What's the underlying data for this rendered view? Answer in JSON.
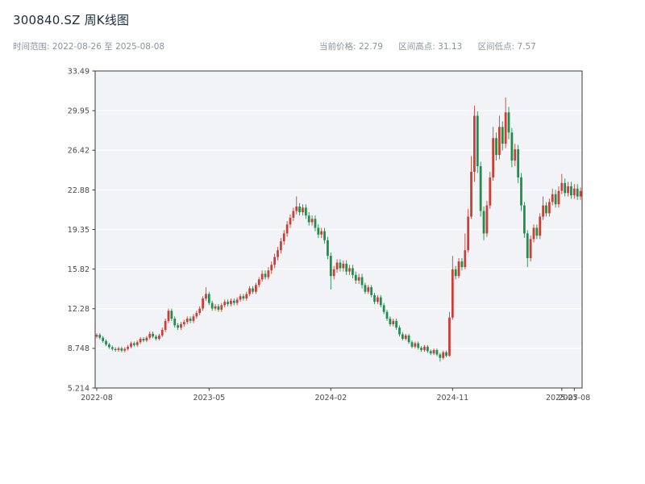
{
  "header": {
    "title": "300840.SZ 周K线图",
    "date_range": "时间范围: 2022-08-26 至 2025-08-08",
    "stats": [
      "当前价格: 22.79",
      "区间高点: 31.13",
      "区间低点: 7.57"
    ]
  },
  "chart_data": {
    "type": "candlestick",
    "symbol": "300840.SZ",
    "freq": "weekly",
    "start_date": "2022-08-26",
    "end_date": "2025-08-08",
    "current_price": 22.79,
    "range_high": 31.13,
    "range_low": 7.57,
    "ylim": [
      5.214,
      33.49
    ],
    "y_ticks": [
      33.49,
      29.95,
      26.42,
      22.88,
      19.35,
      15.82,
      12.28,
      8.748,
      5.214
    ],
    "y_tick_labels": [
      "33.49",
      "29.95",
      "26.42",
      "22.88",
      "19.35",
      "15.82",
      "12.28",
      "8.748",
      "5.214"
    ],
    "x_ticks": [
      {
        "index": 0,
        "label": "2022-08"
      },
      {
        "index": 36,
        "label": "2023-05"
      },
      {
        "index": 75,
        "label": "2024-02"
      },
      {
        "index": 114,
        "label": "2024-11"
      },
      {
        "index": 149,
        "label": "2025-07"
      },
      {
        "index": 153,
        "label": "2025-08"
      }
    ],
    "colors": {
      "up": "#cc3f35",
      "down": "#1f8f4e",
      "plot_bg": "#f2f3f7",
      "grid": "#ffffff",
      "spine": "#3a3a3a",
      "tick_text": "#4a4a4a"
    },
    "candles": [
      [
        9.8,
        10.1,
        9.65,
        9.95
      ],
      [
        9.95,
        10.1,
        9.55,
        9.7
      ],
      [
        9.7,
        9.85,
        9.25,
        9.4
      ],
      [
        9.4,
        9.55,
        8.95,
        9.1
      ],
      [
        9.1,
        9.25,
        8.7,
        8.85
      ],
      [
        8.85,
        9.0,
        8.55,
        8.7
      ],
      [
        8.7,
        8.85,
        8.45,
        8.6
      ],
      [
        8.6,
        8.9,
        8.45,
        8.75
      ],
      [
        8.75,
        8.9,
        8.4,
        8.55
      ],
      [
        8.55,
        8.85,
        8.4,
        8.7
      ],
      [
        8.7,
        9.05,
        8.55,
        8.9
      ],
      [
        8.9,
        9.35,
        8.75,
        9.2
      ],
      [
        9.2,
        9.35,
        8.9,
        9.05
      ],
      [
        9.05,
        9.45,
        8.9,
        9.3
      ],
      [
        9.3,
        9.75,
        9.15,
        9.6
      ],
      [
        9.6,
        9.75,
        9.3,
        9.45
      ],
      [
        9.45,
        9.85,
        9.3,
        9.7
      ],
      [
        9.7,
        10.25,
        9.55,
        10.05
      ],
      [
        10.05,
        10.25,
        9.65,
        9.8
      ],
      [
        9.8,
        9.95,
        9.45,
        9.6
      ],
      [
        9.6,
        10.05,
        9.45,
        9.9
      ],
      [
        9.9,
        10.6,
        9.75,
        10.4
      ],
      [
        10.4,
        11.4,
        10.2,
        11.2
      ],
      [
        11.2,
        12.3,
        11.0,
        12.1
      ],
      [
        12.1,
        12.3,
        11.2,
        11.4
      ],
      [
        11.4,
        11.6,
        10.6,
        10.8
      ],
      [
        10.8,
        11.0,
        10.4,
        10.6
      ],
      [
        10.6,
        11.1,
        10.4,
        10.9
      ],
      [
        10.9,
        11.3,
        10.7,
        11.1
      ],
      [
        11.1,
        11.6,
        10.9,
        11.4
      ],
      [
        11.4,
        11.6,
        11.0,
        11.2
      ],
      [
        11.2,
        11.8,
        11.0,
        11.6
      ],
      [
        11.6,
        12.1,
        11.4,
        11.9
      ],
      [
        11.9,
        12.5,
        11.7,
        12.3
      ],
      [
        12.3,
        13.4,
        12.1,
        13.2
      ],
      [
        13.2,
        14.2,
        13.0,
        13.6
      ],
      [
        13.6,
        13.8,
        12.6,
        12.8
      ],
      [
        12.8,
        13.0,
        12.1,
        12.3
      ],
      [
        12.3,
        12.7,
        12.1,
        12.5
      ],
      [
        12.5,
        12.7,
        12.0,
        12.2
      ],
      [
        12.2,
        12.8,
        12.0,
        12.6
      ],
      [
        12.6,
        13.1,
        12.4,
        12.9
      ],
      [
        12.9,
        13.1,
        12.5,
        12.7
      ],
      [
        12.7,
        13.2,
        12.5,
        13.0
      ],
      [
        13.0,
        13.2,
        12.6,
        12.8
      ],
      [
        12.8,
        13.3,
        12.6,
        13.1
      ],
      [
        13.1,
        13.6,
        12.9,
        13.4
      ],
      [
        13.4,
        13.6,
        13.0,
        13.2
      ],
      [
        13.2,
        13.8,
        13.0,
        13.6
      ],
      [
        13.6,
        14.3,
        13.4,
        14.1
      ],
      [
        14.1,
        14.3,
        13.6,
        13.8
      ],
      [
        13.8,
        14.6,
        13.6,
        14.4
      ],
      [
        14.4,
        15.1,
        14.2,
        14.9
      ],
      [
        14.9,
        15.7,
        14.7,
        15.4
      ],
      [
        15.4,
        15.7,
        14.9,
        15.1
      ],
      [
        15.1,
        16.0,
        14.9,
        15.7
      ],
      [
        15.7,
        16.5,
        15.4,
        16.2
      ],
      [
        16.2,
        17.2,
        15.9,
        16.9
      ],
      [
        16.9,
        17.8,
        16.6,
        17.5
      ],
      [
        17.5,
        18.6,
        17.2,
        18.3
      ],
      [
        18.3,
        19.3,
        18.0,
        19.0
      ],
      [
        19.0,
        20.1,
        18.7,
        19.8
      ],
      [
        19.8,
        20.7,
        19.5,
        20.4
      ],
      [
        20.4,
        21.3,
        20.1,
        21.0
      ],
      [
        21.0,
        22.3,
        20.7,
        21.4
      ],
      [
        21.4,
        21.7,
        20.6,
        20.9
      ],
      [
        20.9,
        21.6,
        20.6,
        21.3
      ],
      [
        21.3,
        21.6,
        20.3,
        20.6
      ],
      [
        20.6,
        20.9,
        19.7,
        20.0
      ],
      [
        20.0,
        20.6,
        19.7,
        20.3
      ],
      [
        20.3,
        20.6,
        19.2,
        19.5
      ],
      [
        19.5,
        19.8,
        18.6,
        18.9
      ],
      [
        18.9,
        19.5,
        18.6,
        19.2
      ],
      [
        19.2,
        19.5,
        18.1,
        18.4
      ],
      [
        18.4,
        18.7,
        16.7,
        17.0
      ],
      [
        17.0,
        17.3,
        14.0,
        15.2
      ],
      [
        15.2,
        16.1,
        14.9,
        15.8
      ],
      [
        15.8,
        16.7,
        15.5,
        16.4
      ],
      [
        16.4,
        16.7,
        15.6,
        15.9
      ],
      [
        15.9,
        16.6,
        15.6,
        16.3
      ],
      [
        16.3,
        16.6,
        15.3,
        15.6
      ],
      [
        15.6,
        16.2,
        15.3,
        15.9
      ],
      [
        15.9,
        16.2,
        15.0,
        15.3
      ],
      [
        15.3,
        15.6,
        14.5,
        14.8
      ],
      [
        14.8,
        15.4,
        14.5,
        15.1
      ],
      [
        15.1,
        15.4,
        14.1,
        14.4
      ],
      [
        14.4,
        14.6,
        13.6,
        13.8
      ],
      [
        13.8,
        14.4,
        13.6,
        14.2
      ],
      [
        14.2,
        14.4,
        13.3,
        13.5
      ],
      [
        13.5,
        13.7,
        12.7,
        12.9
      ],
      [
        12.9,
        13.5,
        12.7,
        13.3
      ],
      [
        13.3,
        13.5,
        12.4,
        12.6
      ],
      [
        12.6,
        12.8,
        11.8,
        12.0
      ],
      [
        12.0,
        12.2,
        11.2,
        11.4
      ],
      [
        11.4,
        11.6,
        10.7,
        10.9
      ],
      [
        10.9,
        11.4,
        10.7,
        11.2
      ],
      [
        11.2,
        11.4,
        10.4,
        10.6
      ],
      [
        10.6,
        10.8,
        9.8,
        10.0
      ],
      [
        10.0,
        10.2,
        9.45,
        9.6
      ],
      [
        9.6,
        10.05,
        9.45,
        9.9
      ],
      [
        9.9,
        10.05,
        9.15,
        9.3
      ],
      [
        9.3,
        9.45,
        8.75,
        8.9
      ],
      [
        8.9,
        9.35,
        8.75,
        9.2
      ],
      [
        9.2,
        9.35,
        8.65,
        8.8
      ],
      [
        8.8,
        8.95,
        8.45,
        8.6
      ],
      [
        8.6,
        9.05,
        8.45,
        8.9
      ],
      [
        8.9,
        9.05,
        8.35,
        8.5
      ],
      [
        8.5,
        8.65,
        8.15,
        8.3
      ],
      [
        8.3,
        8.75,
        8.15,
        8.6
      ],
      [
        8.6,
        8.75,
        8.05,
        8.2
      ],
      [
        8.2,
        8.35,
        7.57,
        7.9
      ],
      [
        7.9,
        8.55,
        7.75,
        8.4
      ],
      [
        8.4,
        8.55,
        7.95,
        8.1
      ],
      [
        8.1,
        12.0,
        8.0,
        11.5
      ],
      [
        11.5,
        17.0,
        11.3,
        15.8
      ],
      [
        15.8,
        16.1,
        14.9,
        15.2
      ],
      [
        15.2,
        16.8,
        15.0,
        16.5
      ],
      [
        16.5,
        16.8,
        15.7,
        16.0
      ],
      [
        16.0,
        19.0,
        15.8,
        17.5
      ],
      [
        17.5,
        21.2,
        17.3,
        20.5
      ],
      [
        20.5,
        25.9,
        20.3,
        24.5
      ],
      [
        24.5,
        30.4,
        23.6,
        29.5
      ],
      [
        29.5,
        29.9,
        24.4,
        25.0
      ],
      [
        25.0,
        25.4,
        20.5,
        21.0
      ],
      [
        21.0,
        21.4,
        18.4,
        19.0
      ],
      [
        19.0,
        21.9,
        18.7,
        21.5
      ],
      [
        21.5,
        24.5,
        21.2,
        24.0
      ],
      [
        24.0,
        28.5,
        23.7,
        27.5
      ],
      [
        27.5,
        28.0,
        25.5,
        26.0
      ],
      [
        26.0,
        29.5,
        25.6,
        28.5
      ],
      [
        28.5,
        29.0,
        26.4,
        27.0
      ],
      [
        27.0,
        31.13,
        26.6,
        29.8
      ],
      [
        29.8,
        30.3,
        27.4,
        28.0
      ],
      [
        28.0,
        28.4,
        24.9,
        25.5
      ],
      [
        25.5,
        27.0,
        25.0,
        26.5
      ],
      [
        26.5,
        26.9,
        23.5,
        24.0
      ],
      [
        24.0,
        24.4,
        21.0,
        21.5
      ],
      [
        21.5,
        21.8,
        18.6,
        19.0
      ],
      [
        19.0,
        19.3,
        16.0,
        16.8
      ],
      [
        16.8,
        18.8,
        16.5,
        18.5
      ],
      [
        18.5,
        19.8,
        18.2,
        19.5
      ],
      [
        19.5,
        19.8,
        18.5,
        18.8
      ],
      [
        18.8,
        20.8,
        18.5,
        20.5
      ],
      [
        20.5,
        22.3,
        20.2,
        21.5
      ],
      [
        21.5,
        21.8,
        20.5,
        20.8
      ],
      [
        20.8,
        22.1,
        20.5,
        21.8
      ],
      [
        21.8,
        23.0,
        21.5,
        22.5
      ],
      [
        22.5,
        22.9,
        21.3,
        21.6
      ],
      [
        21.6,
        23.2,
        21.3,
        22.8
      ],
      [
        22.8,
        24.3,
        22.5,
        23.5
      ],
      [
        23.5,
        23.9,
        22.3,
        22.6
      ],
      [
        22.6,
        23.6,
        22.3,
        23.2
      ],
      [
        23.2,
        23.6,
        22.1,
        22.4
      ],
      [
        22.4,
        23.4,
        22.1,
        23.0
      ],
      [
        23.0,
        23.4,
        22.0,
        22.3
      ],
      [
        22.3,
        23.1,
        22.0,
        22.79
      ]
    ]
  }
}
